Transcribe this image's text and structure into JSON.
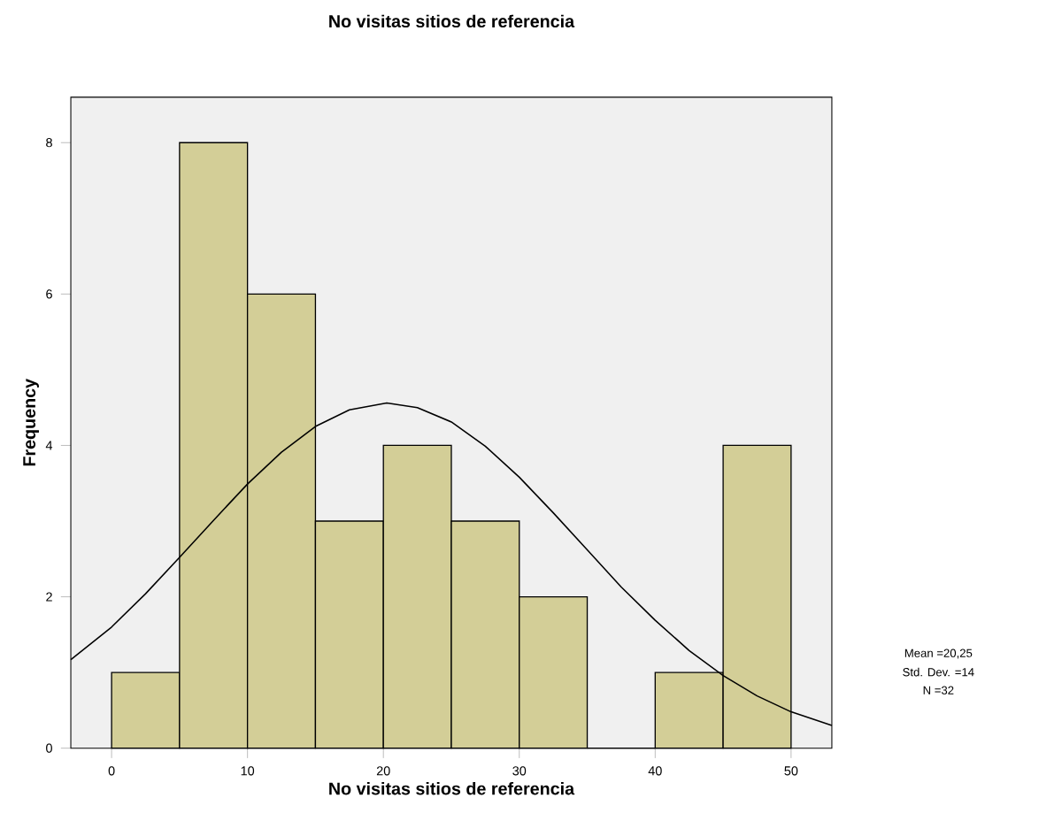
{
  "chart_data": {
    "type": "histogram",
    "title": "No visitas sitios de referencia",
    "xlabel": "No visitas sitios de referencia",
    "ylabel": "Frequency",
    "bins": [
      0,
      5,
      10,
      15,
      20,
      25,
      30,
      35,
      40,
      45,
      50
    ],
    "values": [
      1,
      8,
      6,
      3,
      4,
      3,
      2,
      0,
      1,
      4
    ],
    "color": "#d3ce97",
    "series": [
      {
        "type": "line",
        "color": "#000000",
        "x": [
          -3,
          0,
          2.5,
          5,
          7.5,
          10,
          12.5,
          15,
          17.5,
          20.25,
          22.5,
          25,
          27.5,
          30,
          32.5,
          35,
          37.5,
          40,
          42.5,
          45,
          47.5,
          50,
          53
        ],
        "values": [
          1.17,
          1.6,
          2.04,
          2.52,
          3.01,
          3.49,
          3.91,
          4.25,
          4.47,
          4.56,
          4.5,
          4.31,
          3.99,
          3.58,
          3.11,
          2.62,
          2.13,
          1.69,
          1.29,
          0.96,
          0.69,
          0.48,
          0.3
        ]
      }
    ],
    "xlim": [
      -3,
      53
    ],
    "ylim": [
      0,
      8.6
    ],
    "xticks": [
      0,
      10,
      20,
      30,
      40,
      50
    ],
    "yticks": [
      0,
      2,
      4,
      6,
      8
    ],
    "annotations": [
      "Mean =20,25",
      "Std. Dev. =14",
      "N =32"
    ]
  }
}
